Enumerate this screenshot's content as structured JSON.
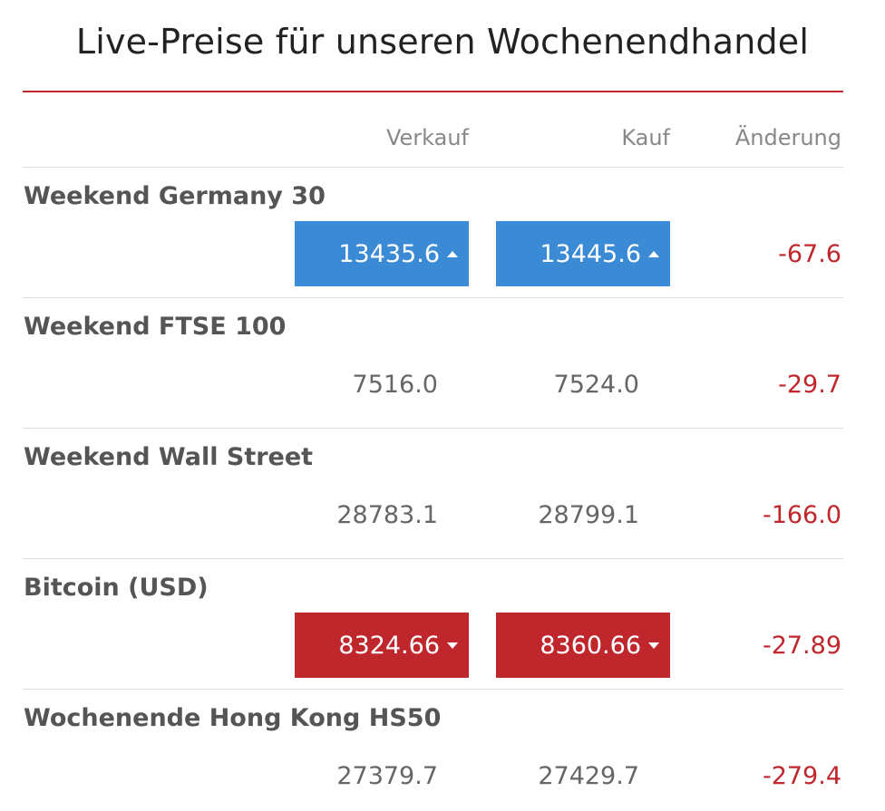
{
  "header": {
    "title": "Live-Preise für unseren Wochenendhandel"
  },
  "table": {
    "columns": [
      "Verkauf",
      "Kauf",
      "Änderung"
    ],
    "rows": [
      {
        "name": "Weekend Germany 30",
        "sell": "13435.6",
        "buy": "13445.6",
        "change": "-67.6",
        "highlight": "up"
      },
      {
        "name": "Weekend FTSE 100",
        "sell": "7516.0",
        "buy": "7524.0",
        "change": "-29.7"
      },
      {
        "name": "Weekend Wall Street",
        "sell": "28783.1",
        "buy": "28799.1",
        "change": "-166.0"
      },
      {
        "name": "Bitcoin (USD)",
        "sell": "8324.66",
        "buy": "8360.66",
        "change": "-27.89",
        "highlight": "down"
      },
      {
        "name": "Wochenende Hong Kong HS50",
        "sell": "27379.7",
        "buy": "27429.7",
        "change": "-279.4"
      }
    ]
  }
}
